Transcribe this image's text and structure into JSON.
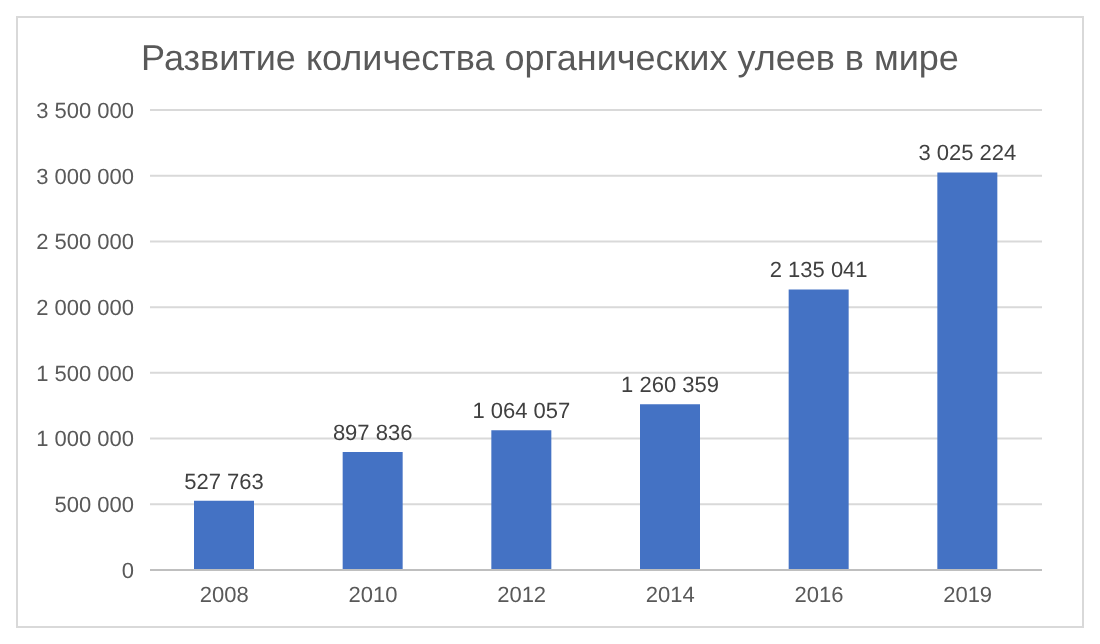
{
  "chart_data": {
    "type": "bar",
    "title": "Развитие количества органических улеев в мире",
    "categories": [
      "2008",
      "2010",
      "2012",
      "2014",
      "2016",
      "2019"
    ],
    "values": [
      527763,
      897836,
      1064057,
      1260359,
      2135041,
      3025224
    ],
    "value_labels": [
      "527 763",
      "897 836",
      "1 064 057",
      "1 260 359",
      "2 135 041",
      "3 025 224"
    ],
    "color": "#4472c4",
    "ylim": [
      0,
      3500000
    ],
    "yticks": [
      {
        "value": 0,
        "label": "0"
      },
      {
        "value": 500000,
        "label": "500 000"
      },
      {
        "value": 1000000,
        "label": "1 000 000"
      },
      {
        "value": 1500000,
        "label": "1 500 000"
      },
      {
        "value": 2000000,
        "label": "2 000 000"
      },
      {
        "value": 2500000,
        "label": "2 500 000"
      },
      {
        "value": 3000000,
        "label": "3 000 000"
      },
      {
        "value": 3500000,
        "label": "3 500 000"
      }
    ],
    "grid": "y"
  }
}
